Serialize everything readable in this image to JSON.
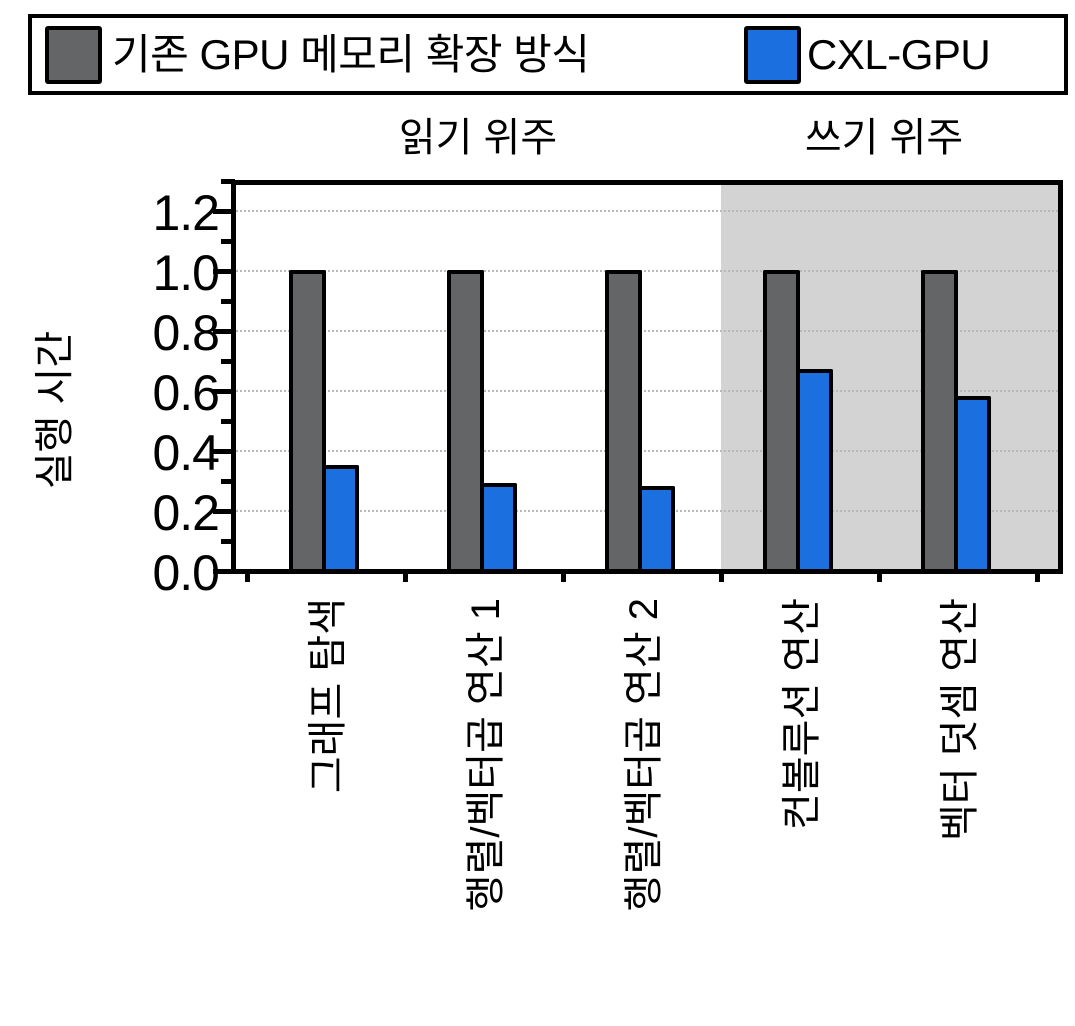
{
  "legend": {
    "items": [
      {
        "label": "기존 GPU 메모리 확장 방식",
        "color": "#646566"
      },
      {
        "label": "CXL-GPU",
        "color": "#1c6fdf"
      }
    ]
  },
  "groups": [
    {
      "label": "읽기 위주",
      "shaded": false
    },
    {
      "label": "쓰기 위주",
      "shaded": true,
      "shade_color": "#d3d3d3"
    }
  ],
  "axes": {
    "ylabel": "실행 시간",
    "yticks": [
      "0.0",
      "0.2",
      "0.4",
      "0.6",
      "0.8",
      "1.0",
      "1.2"
    ]
  },
  "categories": [
    "그래프 탐색",
    "행렬/벡터곱 연산 1",
    "행렬/벡터곱 연산 2",
    "컨볼루션 연산",
    "벡터 덧셈 연산"
  ],
  "chart_data": {
    "type": "bar",
    "title": "",
    "xlabel": "",
    "ylabel": "실행 시간",
    "ylim": [
      0,
      1.3
    ],
    "yticks": [
      0.0,
      0.2,
      0.4,
      0.6,
      0.8,
      1.0,
      1.2
    ],
    "grid": true,
    "legend_position": "top",
    "categories": [
      "그래프 탐색",
      "행렬/벡터곱 연산 1",
      "행렬/벡터곱 연산 2",
      "컨볼루션 연산",
      "벡터 덧셈 연산"
    ],
    "series": [
      {
        "name": "기존 GPU 메모리 확장 방식",
        "color": "#646566",
        "values": [
          1.0,
          1.0,
          1.0,
          1.0,
          1.0
        ]
      },
      {
        "name": "CXL-GPU",
        "color": "#1c6fdf",
        "values": [
          0.35,
          0.29,
          0.28,
          0.67,
          0.58
        ]
      }
    ],
    "annotations": [
      {
        "text": "읽기 위주",
        "categories": [
          "그래프 탐색",
          "행렬/벡터곱 연산 1",
          "행렬/벡터곱 연산 2"
        ]
      },
      {
        "text": "쓰기 위주",
        "categories": [
          "컨볼루션 연산",
          "벡터 덧셈 연산"
        ],
        "shaded": true
      }
    ]
  }
}
